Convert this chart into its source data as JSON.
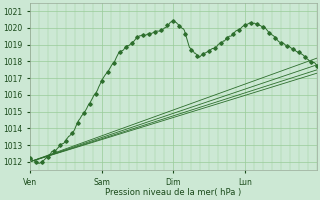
{
  "xlabel": "Pression niveau de la mer( hPa )",
  "bg_color": "#cce8d4",
  "grid_color": "#99cc99",
  "line_color": "#2d6e2d",
  "ylim": [
    1011.5,
    1021.5
  ],
  "yticks": [
    1012,
    1013,
    1014,
    1015,
    1016,
    1017,
    1018,
    1019,
    1020,
    1021
  ],
  "day_labels": [
    "Ven",
    "Sam",
    "Dim",
    "Lun"
  ],
  "day_positions": [
    0,
    72,
    144,
    216
  ],
  "total_points": 288
}
